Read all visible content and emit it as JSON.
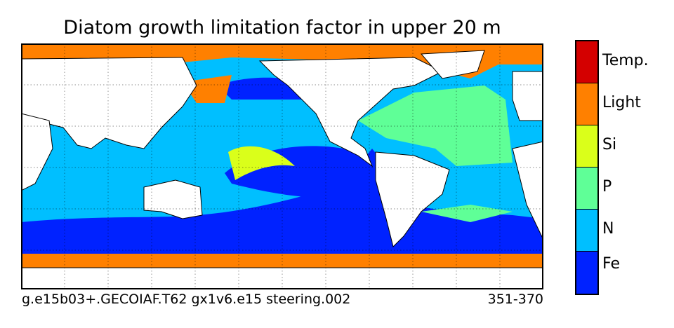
{
  "title": "Diatom growth limitation factor in upper 20 m",
  "caption": {
    "left": "g.e15b03+.GECOIAF.T62 gx1v6.e15 steering.002",
    "right": "351-370"
  },
  "colorbar": [
    {
      "label": "Temp.",
      "color": "#d40000"
    },
    {
      "label": "Light",
      "color": "#ff8000"
    },
    {
      "label": "Si",
      "color": "#daff1a"
    },
    {
      "label": "P",
      "color": "#5fff97"
    },
    {
      "label": "N",
      "color": "#00bfff"
    },
    {
      "label": "Fe",
      "color": "#0022ff"
    }
  ]
}
